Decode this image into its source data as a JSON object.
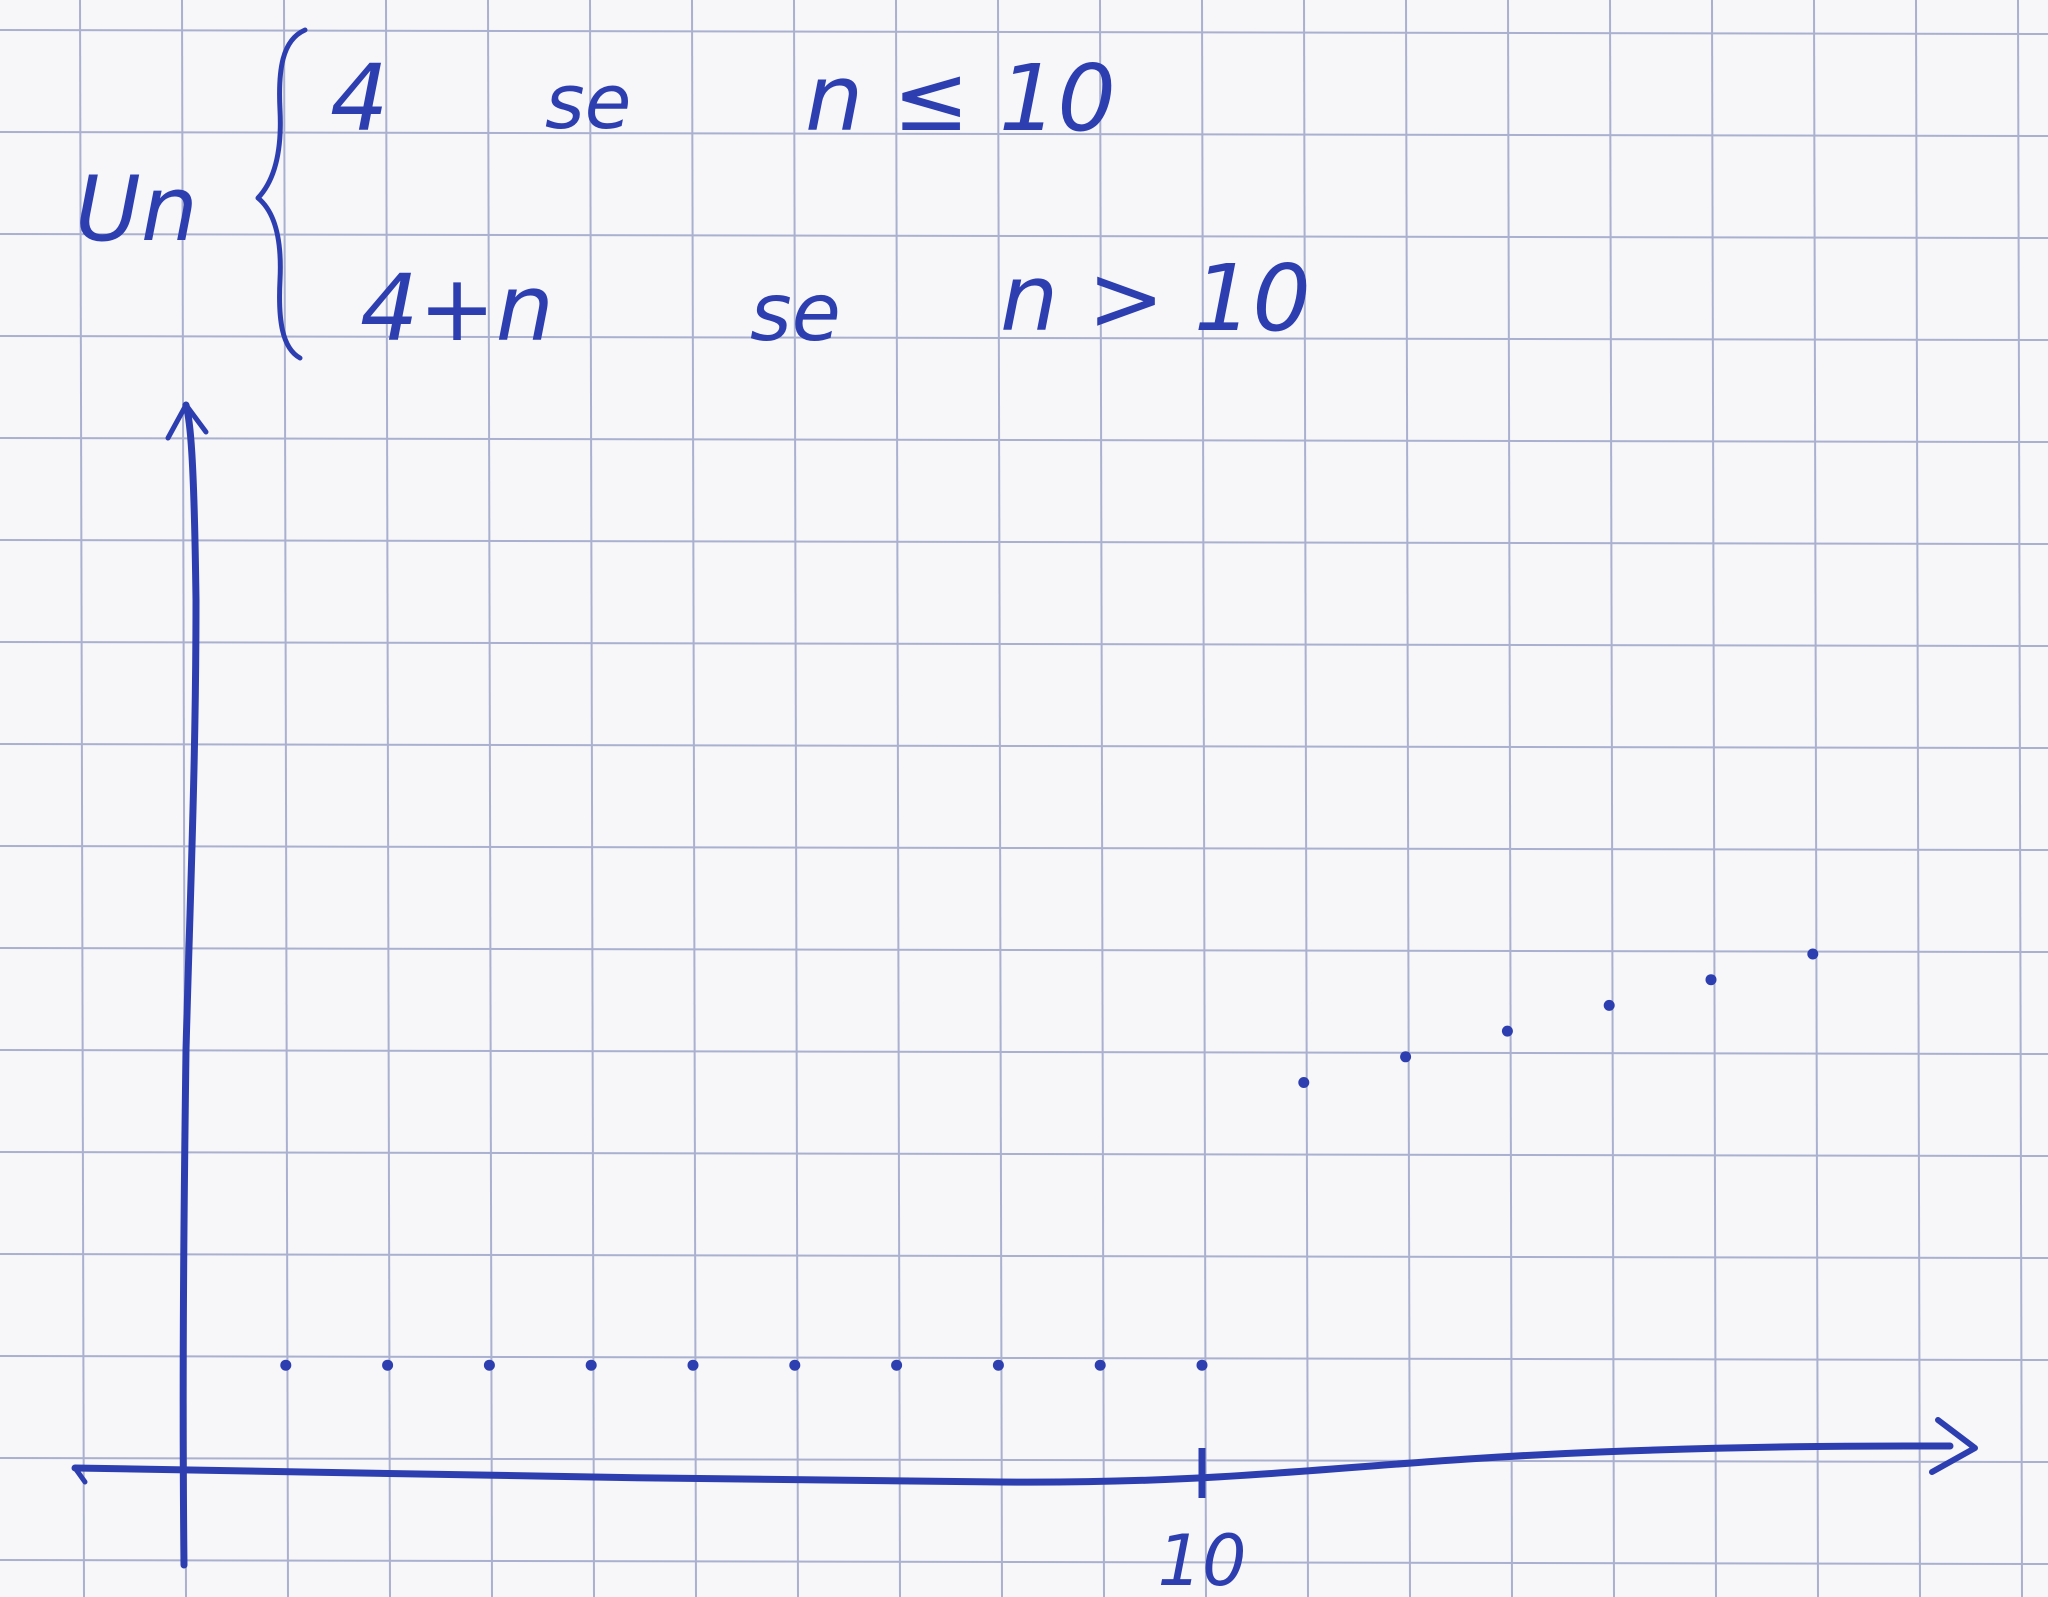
{
  "chart_data": {
    "type": "scatter",
    "formula": {
      "lhs": "Un",
      "cases": [
        {
          "expr": "4",
          "word": "se",
          "cond": "n ≤ 10"
        },
        {
          "expr": "4+n",
          "word": "se",
          "cond": "n > 10"
        }
      ]
    },
    "x_tick_labels": [
      "10"
    ],
    "x": [
      1,
      2,
      3,
      4,
      5,
      6,
      7,
      8,
      9,
      10,
      11,
      12,
      13,
      14,
      15,
      16
    ],
    "y": [
      4,
      4,
      4,
      4,
      4,
      4,
      4,
      4,
      4,
      4,
      15,
      16,
      17,
      18,
      19,
      20
    ],
    "xlim": [
      -1,
      18
    ],
    "ylim": [
      0,
      20
    ],
    "grid": true,
    "colors": {
      "ink": "#2d3fb0",
      "grid": "#aab0cf",
      "paper": "#f7f7f9"
    }
  }
}
